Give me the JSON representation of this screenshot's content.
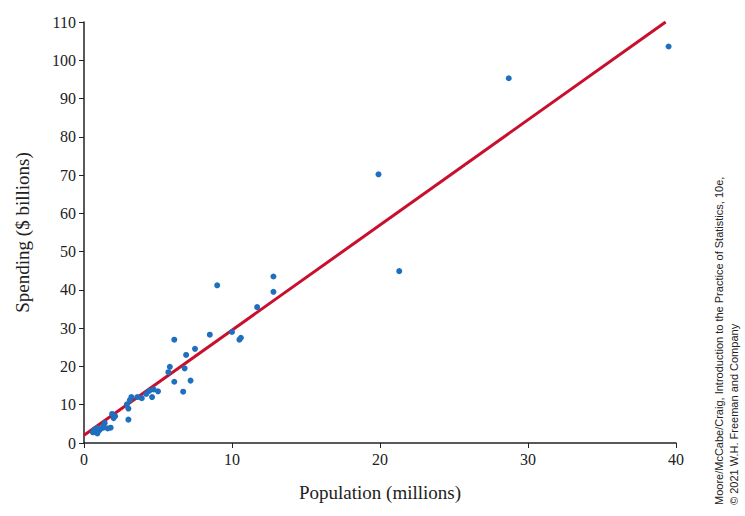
{
  "chart_data": {
    "type": "scatter",
    "x_label": "Population (millions)",
    "y_label": "Spending ($ billions)",
    "annotations": [
      "Moore/McCabe/Craig, Introduction to the Practice of Statistics, 10e,",
      "© 2021 W.H. Freeman and Company"
    ],
    "xlim": [
      0,
      40
    ],
    "xticks": [
      0,
      10,
      20,
      30,
      40
    ],
    "ylim": [
      0,
      110
    ],
    "yticks": [
      0,
      10,
      20,
      30,
      40,
      50,
      60,
      70,
      80,
      90,
      100,
      110
    ],
    "grid": false,
    "series": [
      {
        "type": "scatter",
        "color": "#1f6fbf",
        "marker": "circle",
        "x": [
          39.5,
          28.7,
          19.9,
          21.3,
          12.8,
          12.8,
          9.0,
          11.7,
          10.0,
          10.5,
          10.6,
          8.5,
          7.5,
          7.2,
          6.9,
          6.8,
          6.7,
          6.1,
          6.1,
          5.8,
          5.7,
          5.0,
          4.7,
          4.6,
          4.4,
          4.2,
          3.9,
          3.6,
          3.2,
          3.1,
          3.0,
          3.0,
          2.9,
          2.1,
          1.9,
          1.8,
          1.4,
          1.3,
          1.1,
          1.0,
          0.9,
          0.7,
          0.6,
          0.7,
          0.9,
          1.3,
          1.6,
          2.0
        ],
        "values": [
          103.6,
          95.3,
          70.2,
          44.9,
          43.5,
          39.5,
          41.2,
          35.5,
          29.0,
          27.0,
          27.5,
          28.3,
          24.6,
          16.3,
          23.0,
          19.5,
          13.4,
          27.0,
          16.0,
          19.9,
          18.5,
          13.5,
          14.0,
          12.0,
          13.6,
          12.8,
          11.7,
          12.0,
          12.0,
          11.2,
          6.1,
          9.0,
          10.1,
          7.0,
          7.6,
          4.0,
          5.2,
          4.0,
          3.6,
          3.2,
          3.9,
          3.5,
          2.8,
          3.0,
          2.5,
          4.5,
          3.8,
          6.5
        ]
      },
      {
        "type": "line",
        "color": "#c8102e",
        "line_style": "solid",
        "x": [
          0,
          39.3
        ],
        "values": [
          2,
          110
        ]
      }
    ]
  }
}
